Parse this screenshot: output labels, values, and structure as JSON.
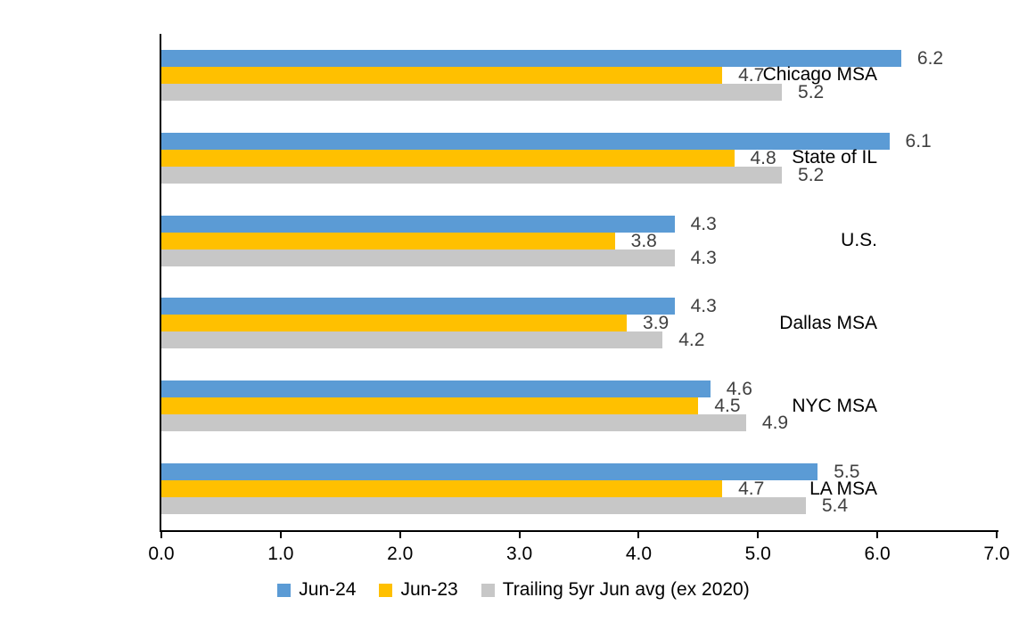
{
  "chart_data": {
    "type": "bar",
    "orientation": "horizontal",
    "title": "",
    "categories": [
      "Chicago MSA",
      "State of IL",
      "U.S.",
      "Dallas MSA",
      "NYC MSA",
      "LA MSA"
    ],
    "series": [
      {
        "name": "Jun-24",
        "color": "#5B9BD5",
        "values": [
          6.2,
          6.1,
          4.3,
          4.3,
          4.6,
          5.5
        ]
      },
      {
        "name": "Jun-23",
        "color": "#FFC000",
        "values": [
          4.7,
          4.8,
          3.8,
          3.9,
          4.5,
          4.7
        ]
      },
      {
        "name": "Trailing 5yr Jun avg (ex 2020)",
        "color": "#C7C7C7",
        "values": [
          5.2,
          5.2,
          4.3,
          4.2,
          4.9,
          5.4
        ]
      }
    ],
    "xlim": [
      0,
      7
    ],
    "x_tick_labels": [
      "0.0",
      "1.0",
      "2.0",
      "3.0",
      "4.0",
      "5.0",
      "6.0",
      "7.0"
    ],
    "data_labels_shown": true,
    "data_label_color": "#404040",
    "axis_color": "#000000",
    "grid": false,
    "legend_position": "bottom"
  }
}
